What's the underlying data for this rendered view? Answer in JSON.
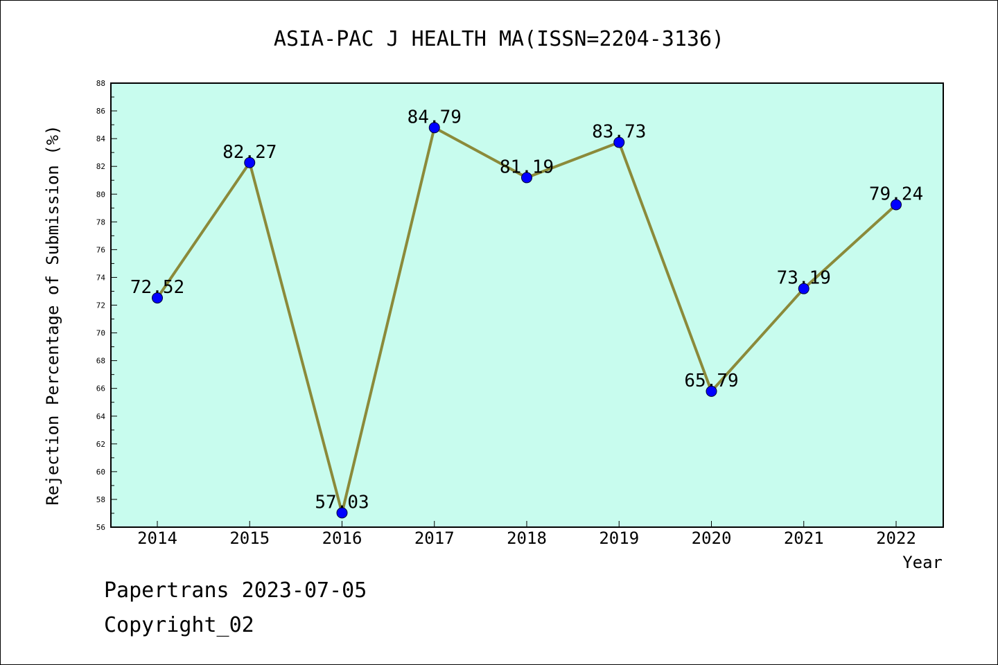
{
  "chart_data": {
    "type": "line",
    "title": "ASIA-PAC J HEALTH MA(ISSN=2204-3136)",
    "xlabel": "Year",
    "ylabel": "Rejection Percentage of Submission (%)",
    "categories": [
      "2014",
      "2015",
      "2016",
      "2017",
      "2018",
      "2019",
      "2020",
      "2021",
      "2022"
    ],
    "values": [
      72.52,
      82.27,
      57.03,
      84.79,
      81.19,
      83.73,
      65.79,
      73.19,
      79.24
    ],
    "data_labels": [
      "72.52",
      "82.27",
      "57.03",
      "84.79",
      "81.19",
      "83.73",
      "65.79",
      "73.19",
      "79.24"
    ],
    "ylim": [
      56,
      88
    ],
    "yticks": [
      "56",
      "58",
      "60",
      "62",
      "64",
      "66",
      "68",
      "70",
      "72",
      "74",
      "76",
      "78",
      "80",
      "82",
      "84",
      "86",
      "88"
    ],
    "grid": false,
    "colors": {
      "plot_background": "#c8fcee",
      "line": "#8b8a3a",
      "marker": "#0000ff"
    }
  },
  "footer": {
    "line1": "Papertrans 2023-07-05",
    "line2": "Copyright_02"
  }
}
